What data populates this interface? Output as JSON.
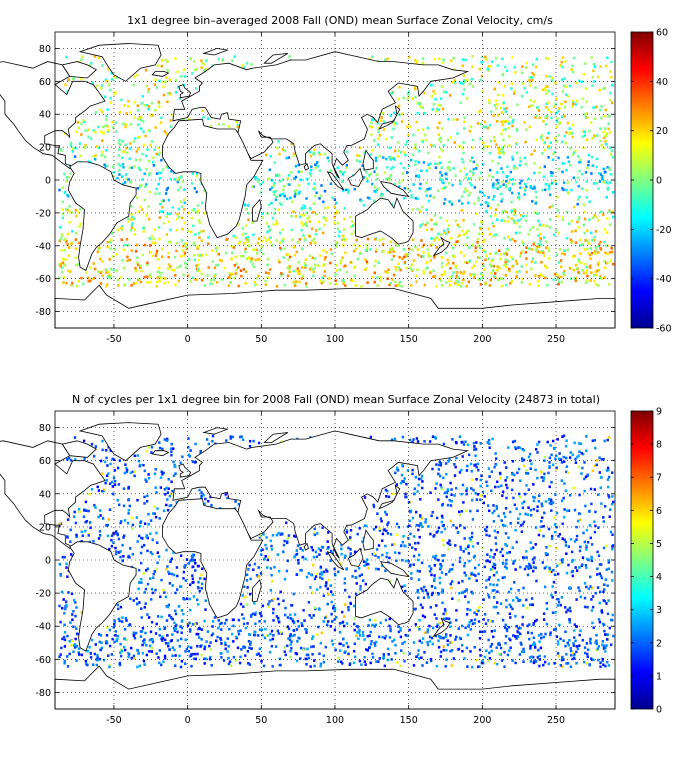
{
  "panels": [
    {
      "title": "1x1 degree bin–averaged 2008 Fall (OND) mean Surface Zonal Velocity, cm/s",
      "x_ticks": [
        "-50",
        "0",
        "50",
        "100",
        "150",
        "200",
        "250"
      ],
      "y_ticks": [
        "80",
        "60",
        "40",
        "20",
        "0",
        "-20",
        "-40",
        "-60",
        "-80"
      ],
      "colorbar_ticks": [
        "60",
        "40",
        "20",
        "0",
        "-20",
        "-40",
        "-60"
      ]
    },
    {
      "title": "N of cycles per 1x1 degree bin for 2008 Fall (OND) mean Surface Zonal Velocity (24873 in total)",
      "x_ticks": [
        "-50",
        "0",
        "50",
        "100",
        "150",
        "200",
        "250"
      ],
      "y_ticks": [
        "80",
        "60",
        "40",
        "20",
        "0",
        "-20",
        "-40",
        "-60",
        "-80"
      ],
      "colorbar_ticks": [
        "9",
        "8",
        "7",
        "6",
        "5",
        "4",
        "3",
        "2",
        "1",
        "0"
      ]
    }
  ],
  "chart_data": [
    {
      "type": "heatmap",
      "title": "1x1 degree bin–averaged 2008 Fall (OND) mean Surface Zonal Velocity, cm/s",
      "xlim": [
        -90,
        290
      ],
      "ylim": [
        -90,
        90
      ],
      "x_ticks": [
        -50,
        0,
        50,
        100,
        150,
        200,
        250
      ],
      "y_ticks": [
        80,
        60,
        40,
        20,
        0,
        -20,
        -40,
        -60,
        -80
      ],
      "colorbar": {
        "colormap": "jet",
        "range": [
          -60,
          60
        ],
        "ticks": [
          60,
          40,
          20,
          0,
          -20,
          -40,
          -60
        ]
      },
      "grid": true
    },
    {
      "type": "heatmap",
      "title": "N of cycles per 1x1 degree bin for 2008 Fall (OND) mean Surface Zonal Velocity (24873 in total)",
      "xlim": [
        -90,
        290
      ],
      "ylim": [
        -90,
        90
      ],
      "x_ticks": [
        -50,
        0,
        50,
        100,
        150,
        200,
        250
      ],
      "y_ticks": [
        80,
        60,
        40,
        20,
        0,
        -20,
        -40,
        -60,
        -80
      ],
      "colorbar": {
        "colormap": "jet",
        "range": [
          0,
          9
        ],
        "ticks": [
          9,
          8,
          7,
          6,
          5,
          4,
          3,
          2,
          1,
          0
        ]
      },
      "total_cycles": 24873,
      "grid": true
    }
  ]
}
